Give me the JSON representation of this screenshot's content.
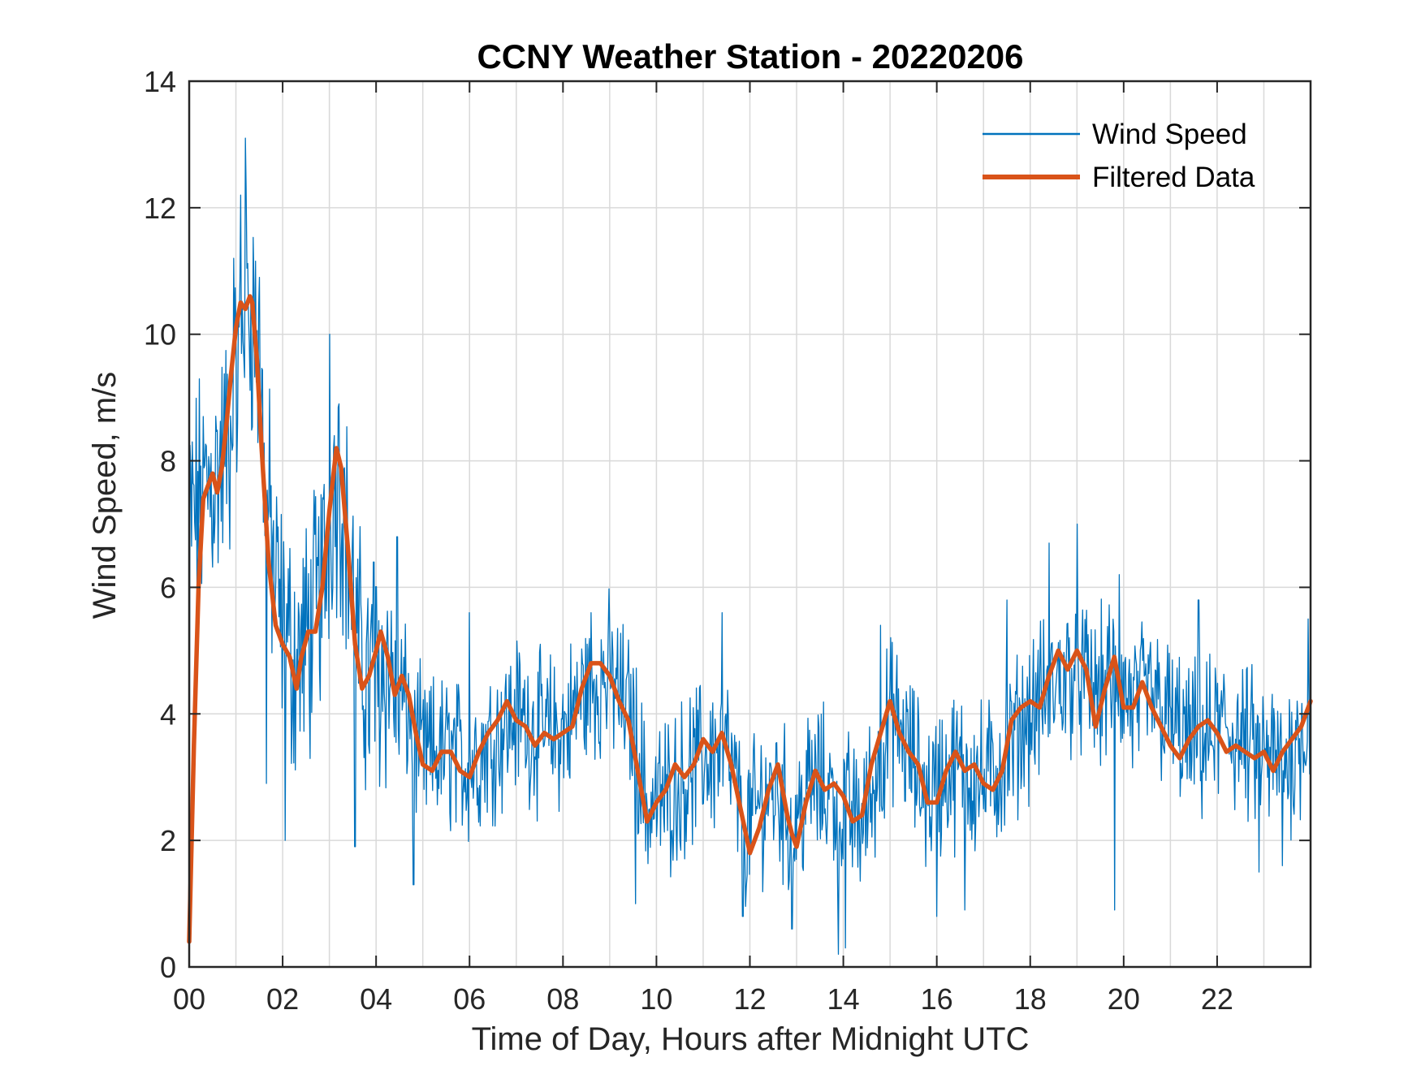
{
  "chart_data": {
    "type": "line",
    "title": "CCNY Weather Station - 20220206",
    "xlabel": "Time of Day, Hours after Midnight UTC",
    "ylabel": "Wind Speed, m/s",
    "xlim": [
      0,
      24
    ],
    "ylim": [
      0,
      14
    ],
    "xticks": [
      0,
      2,
      4,
      6,
      8,
      10,
      12,
      14,
      16,
      18,
      20,
      22
    ],
    "xtick_labels": [
      "00",
      "02",
      "04",
      "06",
      "08",
      "10",
      "12",
      "14",
      "16",
      "18",
      "20",
      "22"
    ],
    "yticks": [
      0,
      2,
      4,
      6,
      8,
      10,
      12,
      14
    ],
    "ytick_labels": [
      "0",
      "2",
      "4",
      "6",
      "8",
      "10",
      "12",
      "14"
    ],
    "minor_x_grid_step": 1,
    "grid": true,
    "legend": {
      "position": "top-right",
      "entries": [
        "Wind Speed",
        "Filtered Data"
      ]
    },
    "colors": {
      "wind_speed": "#0072BD",
      "filtered": "#D95319",
      "grid": "#d9d9d9",
      "axis": "#262626"
    },
    "series": [
      {
        "name": "Wind Speed",
        "style": "thin",
        "trend": {
          "x": [
            0.0,
            0.3,
            0.6,
            0.9,
            1.1,
            1.2,
            1.4,
            1.6,
            1.8,
            2.0,
            2.3,
            2.6,
            2.9,
            3.1,
            3.3,
            3.6,
            3.9,
            4.2,
            4.6,
            5.0,
            5.5,
            6.0,
            6.5,
            7.0,
            7.5,
            8.0,
            8.5,
            9.0,
            9.5,
            9.8,
            10.2,
            10.6,
            11.0,
            11.5,
            11.9,
            12.3,
            12.6,
            12.9,
            13.3,
            13.7,
            14.0,
            14.4,
            14.8,
            15.0,
            15.4,
            15.8,
            16.2,
            16.6,
            17.0,
            17.4,
            17.8,
            18.2,
            18.6,
            19.0,
            19.4,
            19.8,
            20.2,
            20.6,
            21.0,
            21.4,
            21.8,
            22.2,
            22.6,
            23.0,
            23.4,
            23.7,
            24.0
          ],
          "y": [
            7.0,
            7.5,
            7.8,
            8.4,
            9.8,
            10.5,
            10.3,
            8.2,
            6.3,
            5.3,
            4.8,
            5.3,
            6.3,
            7.8,
            7.3,
            5.0,
            4.4,
            4.8,
            4.2,
            3.3,
            3.4,
            3.2,
            3.6,
            4.0,
            3.7,
            3.7,
            4.4,
            4.6,
            3.9,
            2.5,
            2.7,
            3.0,
            3.3,
            3.4,
            2.1,
            2.7,
            2.8,
            2.2,
            2.9,
            2.8,
            2.5,
            2.3,
            3.2,
            4.0,
            3.4,
            2.7,
            3.1,
            3.1,
            2.9,
            3.2,
            3.8,
            4.2,
            4.5,
            4.7,
            4.3,
            4.6,
            4.1,
            4.3,
            3.9,
            3.5,
            3.6,
            3.8,
            3.5,
            3.3,
            3.2,
            3.5,
            4.0
          ]
        },
        "spikes": [
          {
            "x": 1.2,
            "y": 13.1
          },
          {
            "x": 1.1,
            "y": 12.2
          },
          {
            "x": 0.95,
            "y": 11.2
          },
          {
            "x": 1.5,
            "y": 10.9
          },
          {
            "x": 3.0,
            "y": 10.0
          },
          {
            "x": 3.2,
            "y": 8.9
          },
          {
            "x": 0.0,
            "y": 8.8
          },
          {
            "x": 0.3,
            "y": 8.7
          },
          {
            "x": 4.45,
            "y": 6.8
          },
          {
            "x": 3.95,
            "y": 6.4
          },
          {
            "x": 8.6,
            "y": 5.6
          },
          {
            "x": 6.0,
            "y": 5.6
          },
          {
            "x": 11.4,
            "y": 5.6
          },
          {
            "x": 14.8,
            "y": 5.4
          },
          {
            "x": 18.4,
            "y": 6.7
          },
          {
            "x": 19.0,
            "y": 7.0
          },
          {
            "x": 19.9,
            "y": 6.2
          },
          {
            "x": 21.6,
            "y": 5.8
          },
          {
            "x": 23.95,
            "y": 5.5
          },
          {
            "x": 17.5,
            "y": 5.8
          },
          {
            "x": 2.05,
            "y": 2.0
          },
          {
            "x": 1.65,
            "y": 2.9
          },
          {
            "x": 3.55,
            "y": 1.9
          },
          {
            "x": 4.8,
            "y": 1.3
          },
          {
            "x": 9.55,
            "y": 1.0
          },
          {
            "x": 11.85,
            "y": 0.8
          },
          {
            "x": 12.9,
            "y": 0.6
          },
          {
            "x": 13.9,
            "y": 0.2
          },
          {
            "x": 14.05,
            "y": 0.3
          },
          {
            "x": 16.0,
            "y": 0.8
          },
          {
            "x": 16.6,
            "y": 0.9
          },
          {
            "x": 19.8,
            "y": 0.9
          },
          {
            "x": 22.9,
            "y": 1.5
          },
          {
            "x": 23.4,
            "y": 1.6
          },
          {
            "x": 0.0,
            "y": 0.4
          }
        ],
        "noise_amplitude": 1.0,
        "sample_step_hours": 0.0167
      },
      {
        "name": "Filtered Data",
        "style": "thick",
        "x": [
          0.0,
          0.1,
          0.2,
          0.3,
          0.4,
          0.5,
          0.6,
          0.7,
          0.8,
          0.9,
          1.0,
          1.1,
          1.2,
          1.3,
          1.35,
          1.45,
          1.55,
          1.7,
          1.85,
          2.0,
          2.15,
          2.3,
          2.4,
          2.55,
          2.7,
          2.85,
          3.0,
          3.15,
          3.25,
          3.4,
          3.55,
          3.7,
          3.85,
          4.0,
          4.1,
          4.25,
          4.4,
          4.55,
          4.7,
          4.85,
          5.0,
          5.2,
          5.4,
          5.6,
          5.8,
          6.0,
          6.2,
          6.4,
          6.6,
          6.8,
          7.0,
          7.2,
          7.4,
          7.6,
          7.8,
          8.0,
          8.2,
          8.4,
          8.6,
          8.8,
          9.0,
          9.2,
          9.4,
          9.6,
          9.8,
          10.0,
          10.2,
          10.4,
          10.6,
          10.8,
          11.0,
          11.2,
          11.4,
          11.6,
          11.8,
          12.0,
          12.2,
          12.4,
          12.6,
          12.8,
          12.9,
          13.0,
          13.2,
          13.4,
          13.6,
          13.8,
          14.0,
          14.2,
          14.4,
          14.6,
          14.8,
          15.0,
          15.2,
          15.4,
          15.6,
          15.8,
          16.0,
          16.2,
          16.4,
          16.6,
          16.8,
          17.0,
          17.2,
          17.4,
          17.6,
          17.8,
          18.0,
          18.2,
          18.4,
          18.6,
          18.8,
          19.0,
          19.2,
          19.4,
          19.6,
          19.8,
          20.0,
          20.2,
          20.4,
          20.6,
          20.8,
          21.0,
          21.2,
          21.4,
          21.6,
          21.8,
          22.0,
          22.2,
          22.4,
          22.6,
          22.8,
          23.0,
          23.2,
          23.4,
          23.6,
          23.8,
          24.0
        ],
        "y": [
          0.4,
          3.5,
          6.0,
          7.4,
          7.6,
          7.8,
          7.5,
          7.9,
          8.6,
          9.4,
          10.1,
          10.5,
          10.4,
          10.6,
          10.5,
          9.6,
          8.2,
          6.4,
          5.4,
          5.1,
          4.9,
          4.4,
          4.9,
          5.3,
          5.3,
          6.0,
          7.2,
          8.2,
          7.9,
          6.6,
          5.1,
          4.4,
          4.6,
          5.0,
          5.3,
          4.9,
          4.3,
          4.6,
          4.3,
          3.7,
          3.2,
          3.1,
          3.4,
          3.4,
          3.1,
          3.0,
          3.4,
          3.7,
          3.9,
          4.2,
          3.9,
          3.8,
          3.5,
          3.7,
          3.6,
          3.7,
          3.8,
          4.4,
          4.8,
          4.8,
          4.6,
          4.2,
          3.9,
          3.1,
          2.3,
          2.6,
          2.8,
          3.2,
          3.0,
          3.2,
          3.6,
          3.4,
          3.7,
          3.2,
          2.5,
          1.8,
          2.2,
          2.8,
          3.2,
          2.4,
          2.1,
          1.9,
          2.6,
          3.1,
          2.8,
          2.9,
          2.7,
          2.3,
          2.4,
          3.2,
          3.7,
          4.2,
          3.7,
          3.4,
          3.2,
          2.6,
          2.6,
          3.1,
          3.4,
          3.1,
          3.2,
          2.9,
          2.8,
          3.1,
          3.9,
          4.1,
          4.2,
          4.1,
          4.6,
          5.0,
          4.7,
          5.0,
          4.7,
          3.8,
          4.4,
          4.9,
          4.1,
          4.1,
          4.5,
          4.1,
          3.8,
          3.5,
          3.3,
          3.6,
          3.8,
          3.9,
          3.7,
          3.4,
          3.5,
          3.4,
          3.3,
          3.4,
          3.1,
          3.4,
          3.6,
          3.8,
          4.2
        ]
      }
    ]
  }
}
